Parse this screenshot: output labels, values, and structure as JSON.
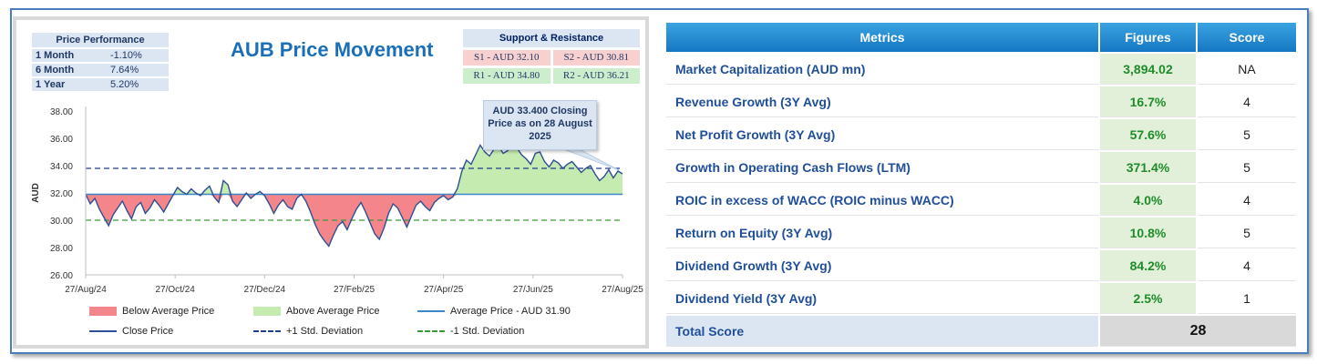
{
  "colors": {
    "accent": "#1a6fb8",
    "below_fill": "#f4858a",
    "above_fill": "#c6ebb0",
    "close_line": "#2e4f95",
    "avg_line": "#3a86c8",
    "plus_std": "#1f3f8f",
    "minus_std": "#3a9a3a"
  },
  "performance": {
    "header": "Price Performance",
    "rows": [
      {
        "label": "1 Month",
        "value": "-1.10%"
      },
      {
        "label": "6 Month",
        "value": "7.64%"
      },
      {
        "label": "1 Year",
        "value": "5.20%"
      }
    ]
  },
  "support_resistance": {
    "header": "Support & Resistance",
    "s1": "S1 - AUD 32.10",
    "s2": "S2 - AUD 30.81",
    "r1": "R1 - AUD 34.80",
    "r2": "R2 - AUD 36.21"
  },
  "callout": "AUD 33.400 Closing Price as on 28 August 2025",
  "legend": {
    "below": "Below Average Price",
    "above": "Above Average Price",
    "average": "Average Price - AUD 31.90",
    "close": "Close Price",
    "plus_std": "+1 Std. Deviation",
    "minus_std": "-1 Std. Deviation"
  },
  "chart_data": {
    "type": "line",
    "title": "AUB Price Movement",
    "ylabel": "AUD",
    "ylim": [
      26,
      38
    ],
    "yticks": [
      "26.00",
      "28.00",
      "30.00",
      "32.00",
      "34.00",
      "36.00",
      "38.00"
    ],
    "xticks": [
      "27/Aug/24",
      "27/Oct/24",
      "27/Dec/24",
      "27/Feb/25",
      "27/Apr/25",
      "27/Jun/25",
      "27/Aug/25"
    ],
    "average": 31.9,
    "plus_std": 33.8,
    "minus_std": 30.0,
    "close": [
      31.9,
      31.2,
      31.6,
      30.8,
      30.2,
      29.6,
      30.4,
      30.9,
      31.4,
      30.7,
      30.1,
      31.0,
      31.3,
      30.5,
      30.9,
      31.5,
      31.1,
      30.6,
      31.2,
      31.8,
      32.4,
      32.1,
      31.9,
      32.3,
      32.0,
      31.8,
      32.2,
      32.5,
      31.7,
      31.3,
      32.9,
      32.6,
      31.4,
      31.0,
      31.5,
      32.0,
      31.6,
      31.9,
      32.1,
      31.8,
      31.2,
      30.5,
      31.1,
      31.5,
      31.0,
      30.8,
      31.6,
      31.9,
      31.4,
      30.6,
      29.7,
      29.0,
      28.5,
      28.1,
      28.9,
      29.6,
      29.9,
      29.3,
      30.1,
      30.8,
      31.3,
      30.6,
      29.8,
      29.0,
      28.6,
      29.4,
      30.5,
      31.2,
      30.9,
      30.2,
      29.5,
      30.3,
      31.1,
      31.4,
      31.0,
      30.7,
      31.3,
      31.6,
      31.8,
      31.5,
      31.7,
      32.3,
      33.6,
      34.4,
      34.1,
      34.8,
      35.5,
      35.0,
      34.7,
      35.2,
      35.4,
      34.9,
      35.1,
      35.6,
      35.3,
      34.8,
      34.5,
      34.1,
      34.9,
      35.0,
      34.3,
      33.9,
      34.4,
      34.2,
      33.8,
      34.1,
      34.3,
      33.9,
      33.5,
      33.8,
      34.0,
      33.4,
      32.9,
      33.2,
      33.7,
      33.1,
      33.6,
      33.4
    ]
  },
  "metrics": {
    "headers": {
      "metric": "Metrics",
      "figures": "Figures",
      "score": "Score"
    },
    "rows": [
      {
        "name": "Market Capitalization (AUD mn)",
        "figure": "3,894.02",
        "score": "NA"
      },
      {
        "name": "Revenue Growth (3Y Avg)",
        "figure": "16.7%",
        "score": "4"
      },
      {
        "name": "Net Profit Growth (3Y Avg)",
        "figure": "57.6%",
        "score": "5"
      },
      {
        "name": "Growth in Operating Cash Flows (LTM)",
        "figure": "371.4%",
        "score": "5"
      },
      {
        "name": "ROIC in excess of WACC (ROIC minus WACC)",
        "figure": "4.0%",
        "score": "4"
      },
      {
        "name": "Return on Equity (3Y Avg)",
        "figure": "10.8%",
        "score": "5"
      },
      {
        "name": "Dividend Growth (3Y Avg)",
        "figure": "84.2%",
        "score": "4"
      },
      {
        "name": "Dividend Yield (3Y Avg)",
        "figure": "2.5%",
        "score": "1"
      }
    ],
    "total_label": "Total Score",
    "total_value": "28"
  }
}
